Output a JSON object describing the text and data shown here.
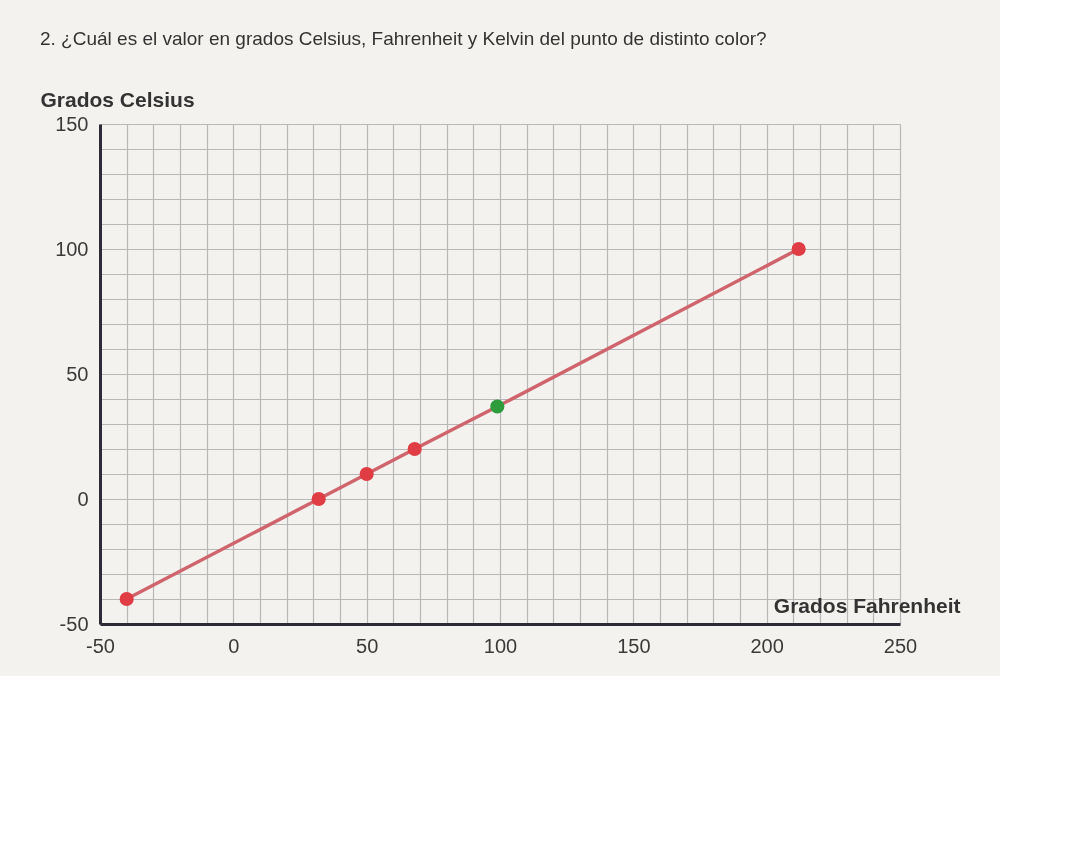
{
  "chart_data": {
    "type": "line",
    "title": "2. ¿Cuál es el valor en grados Celsius, Fahrenheit y Kelvin del punto de distinto color?",
    "xlabel": "Grados Fahrenheit",
    "ylabel": "Grados Celsius",
    "x": [
      -40,
      32,
      50,
      68,
      99,
      212
    ],
    "series": [
      {
        "color": "#d0646c",
        "colors": [
          "#e03c44",
          "#e03c44",
          "#e03c44",
          "#e03c44",
          "#2e9b3c",
          "#e03c44"
        ],
        "values": [
          -40,
          0,
          10,
          20,
          37,
          100
        ]
      }
    ],
    "xlim": [
      -50,
      250
    ],
    "ylim": [
      -50,
      150
    ],
    "xticks": [
      -50,
      {
        "value": -40,
        "label": null
      },
      {
        "value": -30,
        "label": null
      },
      {
        "value": -20,
        "label": null
      },
      {
        "value": -10,
        "label": null
      },
      0,
      {
        "value": 10,
        "label": null
      },
      {
        "value": 20,
        "label": null
      },
      {
        "value": 30,
        "label": null
      },
      {
        "value": 40,
        "label": null
      },
      50,
      {
        "value": 60,
        "label": null
      },
      {
        "value": 70,
        "label": null
      },
      {
        "value": 80,
        "label": null
      },
      {
        "value": 90,
        "label": null
      },
      100,
      {
        "value": 110,
        "label": null
      },
      {
        "value": 120,
        "label": null
      },
      {
        "value": 130,
        "label": null
      },
      {
        "value": 140,
        "label": null
      },
      150,
      {
        "value": 160,
        "label": null
      },
      {
        "value": 170,
        "label": null
      },
      {
        "value": 180,
        "label": null
      },
      {
        "value": 190,
        "label": null
      },
      200,
      {
        "value": 210,
        "label": null
      },
      {
        "value": 220,
        "label": null
      },
      {
        "value": 230,
        "label": null
      },
      {
        "value": 240,
        "label": null
      },
      250
    ],
    "yticks": [
      -50,
      {
        "value": -40,
        "label": null
      },
      {
        "value": -30,
        "label": null
      },
      {
        "value": -20,
        "label": null
      },
      {
        "value": -10,
        "label": null
      },
      0,
      {
        "value": 10,
        "label": null
      },
      {
        "value": 20,
        "label": null
      },
      {
        "value": 30,
        "label": null
      },
      {
        "value": 40,
        "label": null
      },
      50,
      {
        "value": 60,
        "label": null
      },
      {
        "value": 70,
        "label": null
      },
      {
        "value": 80,
        "label": null
      },
      {
        "value": 90,
        "label": null
      },
      100,
      {
        "value": 110,
        "label": null
      },
      {
        "value": 120,
        "label": null
      },
      {
        "value": 130,
        "label": null
      },
      {
        "value": 140,
        "label": null
      },
      150
    ],
    "grid": true,
    "marker": "circle",
    "line_style": "solid"
  }
}
